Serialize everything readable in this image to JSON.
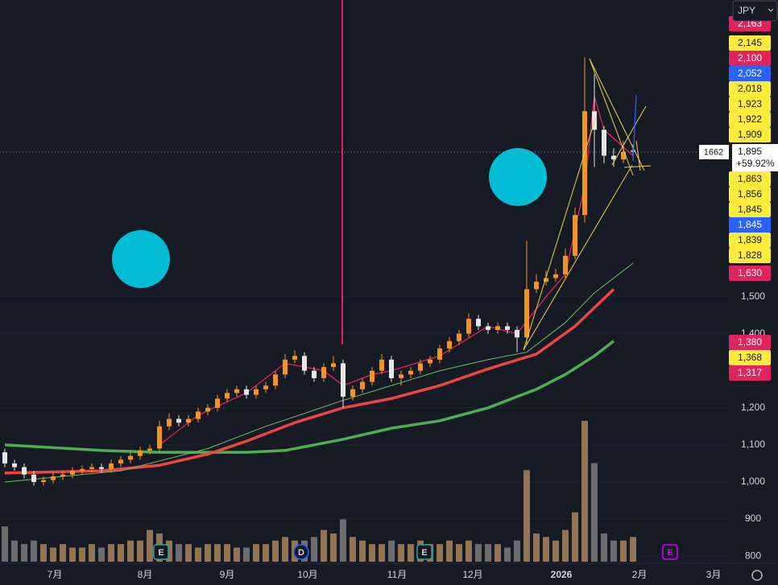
{
  "chart_data": {
    "type": "candlestick",
    "currency": "JPY",
    "up_color": "#f5951f",
    "down_color": "#e6e6e6",
    "volume_up_color": "#a8845c",
    "volume_down_color": "#7c7c80",
    "grid": true,
    "ylim": [
      785,
      2300
    ],
    "yticks": [
      {
        "value": 1500,
        "label": "1,500"
      },
      {
        "value": 1400,
        "label": "1,400"
      },
      {
        "value": 1200,
        "label": "1,200"
      },
      {
        "value": 1100,
        "label": "1,100"
      },
      {
        "value": 1000,
        "label": "1,000"
      },
      900,
      800
    ],
    "open": [
      1080,
      1050,
      1040,
      1020,
      1000,
      1005,
      1015,
      1020,
      1030,
      1035,
      1040,
      1035,
      1050,
      1060,
      1070,
      1085,
      1090,
      1150,
      1170,
      1160,
      1170,
      1190,
      1200,
      1225,
      1240,
      1250,
      1235,
      1250,
      1260,
      1290,
      1330,
      1340,
      1300,
      1280,
      1310,
      1320,
      1230,
      1250,
      1270,
      1300,
      1330,
      1280,
      1290,
      1300,
      1320,
      1330,
      1360,
      1380,
      1400,
      1440,
      1420,
      1410,
      1420,
      1410,
      1390,
      1520,
      1540,
      1550,
      1560,
      1610,
      1720,
      2000,
      1950,
      1880,
      1870,
      1890
    ],
    "high": [
      1090,
      1060,
      1050,
      1030,
      1015,
      1025,
      1030,
      1040,
      1045,
      1050,
      1050,
      1060,
      1070,
      1080,
      1095,
      1100,
      1165,
      1185,
      1180,
      1180,
      1200,
      1210,
      1235,
      1250,
      1260,
      1260,
      1260,
      1270,
      1300,
      1345,
      1355,
      1350,
      1310,
      1320,
      1340,
      1330,
      1260,
      1280,
      1310,
      1345,
      1340,
      1300,
      1310,
      1330,
      1340,
      1370,
      1390,
      1410,
      1455,
      1450,
      1430,
      1430,
      1430,
      1420,
      1650,
      1560,
      1570,
      1575,
      1630,
      1740,
      2145,
      2100,
      1960,
      1900,
      1920,
      1910
    ],
    "low": [
      1040,
      1030,
      1010,
      990,
      990,
      995,
      1005,
      1010,
      1020,
      1025,
      1025,
      1025,
      1040,
      1050,
      1060,
      1075,
      1080,
      1140,
      1150,
      1150,
      1160,
      1180,
      1190,
      1215,
      1230,
      1225,
      1225,
      1240,
      1250,
      1280,
      1320,
      1290,
      1270,
      1270,
      1300,
      1200,
      1220,
      1240,
      1260,
      1290,
      1270,
      1260,
      1280,
      1290,
      1310,
      1320,
      1350,
      1370,
      1390,
      1410,
      1400,
      1400,
      1400,
      1350,
      1370,
      1510,
      1530,
      1540,
      1550,
      1600,
      1700,
      1850,
      1860,
      1850,
      1860,
      1880
    ],
    "close": [
      1050,
      1040,
      1020,
      1000,
      1005,
      1015,
      1020,
      1030,
      1035,
      1040,
      1035,
      1050,
      1060,
      1070,
      1085,
      1090,
      1150,
      1170,
      1160,
      1170,
      1190,
      1200,
      1225,
      1240,
      1250,
      1235,
      1250,
      1260,
      1290,
      1330,
      1340,
      1300,
      1280,
      1310,
      1320,
      1230,
      1250,
      1270,
      1300,
      1330,
      1280,
      1290,
      1300,
      1320,
      1330,
      1360,
      1380,
      1400,
      1440,
      1420,
      1410,
      1420,
      1410,
      1390,
      1520,
      1540,
      1550,
      1560,
      1610,
      1720,
      2000,
      1950,
      1880,
      1870,
      1890,
      1895
    ],
    "volume": [
      50,
      30,
      25,
      30,
      25,
      20,
      25,
      20,
      20,
      25,
      20,
      25,
      25,
      30,
      30,
      45,
      40,
      30,
      25,
      25,
      20,
      25,
      25,
      25,
      20,
      20,
      25,
      25,
      30,
      35,
      30,
      30,
      35,
      45,
      40,
      60,
      35,
      30,
      25,
      25,
      30,
      25,
      25,
      30,
      25,
      25,
      30,
      25,
      30,
      25,
      25,
      25,
      20,
      30,
      130,
      40,
      35,
      30,
      45,
      70,
      200,
      140,
      40,
      30,
      30,
      35
    ],
    "moving_averages": [
      {
        "color": "#4caf50",
        "width": 3.5,
        "x": [
          0,
          10,
          16,
          25,
          29,
          35,
          40,
          45,
          50,
          55,
          58,
          61,
          63
        ],
        "values": [
          1100,
          1085,
          1080,
          1080,
          1085,
          1115,
          1145,
          1165,
          1200,
          1250,
          1290,
          1340,
          1380
        ]
      },
      {
        "color": "#ef4444",
        "width": 3.5,
        "x": [
          0,
          10,
          16,
          21,
          25,
          30,
          35,
          40,
          45,
          50,
          55,
          59,
          61,
          63
        ],
        "values": [
          1024,
          1030,
          1045,
          1075,
          1110,
          1160,
          1200,
          1225,
          1260,
          1305,
          1345,
          1420,
          1470,
          1520
        ]
      },
      {
        "color": "#6abf69",
        "width": 1,
        "x": [
          0,
          12,
          21,
          27,
          35,
          40,
          45,
          50,
          54,
          58,
          61,
          65
        ],
        "values": [
          1000,
          1030,
          1090,
          1150,
          1220,
          1260,
          1300,
          1330,
          1350,
          1430,
          1510,
          1590
        ]
      },
      {
        "color": "#e0245e",
        "width": 1.3,
        "x": [
          16,
          20,
          25,
          29,
          31,
          33,
          35,
          38,
          40,
          45,
          50,
          53,
          56,
          58,
          60,
          61,
          62,
          65
        ],
        "values": [
          1100,
          1180,
          1240,
          1320,
          1310,
          1300,
          1260,
          1290,
          1300,
          1340,
          1420,
          1400,
          1500,
          1560,
          1800,
          2040,
          1950,
          1880
        ]
      }
    ],
    "last_price": "1,895",
    "change": "+59.92%",
    "crosshair_label": "1662",
    "price_labels": [
      {
        "text": "2,163",
        "color": "#e0245e"
      },
      {
        "text": "2,145",
        "color": "#ffeb3b"
      },
      {
        "text": "2,100",
        "color": "#e0245e"
      },
      {
        "text": "2,052",
        "color": "#2962ff"
      },
      {
        "text": "2,018",
        "color": "#ffeb3b"
      },
      {
        "text": "1,923",
        "color": "#ffeb3b"
      },
      {
        "text": "1,922",
        "color": "#ffeb3b"
      },
      {
        "text": "1,909",
        "color": "#ffeb3b"
      },
      {
        "text": "1,863",
        "color": "#ffeb3b"
      },
      {
        "text": "1,856",
        "color": "#ffeb3b"
      },
      {
        "text": "1,845",
        "color": "#ffeb3b"
      },
      {
        "text": "1,845",
        "color": "#2962ff"
      },
      {
        "text": "1,839",
        "color": "#ffeb3b"
      },
      {
        "text": "1,828",
        "color": "#ffeb3b"
      },
      {
        "text": "1,630",
        "color": "#e0245e"
      },
      {
        "text": "1,380",
        "color": "#e0245e"
      },
      {
        "text": "1,368",
        "color": "#ffeb3b"
      },
      {
        "text": "1,317",
        "color": "#e0245e"
      }
    ],
    "x_labels": [
      "7月",
      "8月",
      "9月",
      "10月",
      "11月",
      "12月",
      "2026",
      "2月",
      "3月"
    ],
    "events": [
      {
        "text": "E",
        "color": "#26a69a"
      },
      {
        "text": "D",
        "color": "#2962ff"
      },
      {
        "text": "E",
        "color": "#26a69a"
      },
      {
        "text": "E",
        "color": "#d500f9"
      }
    ]
  }
}
